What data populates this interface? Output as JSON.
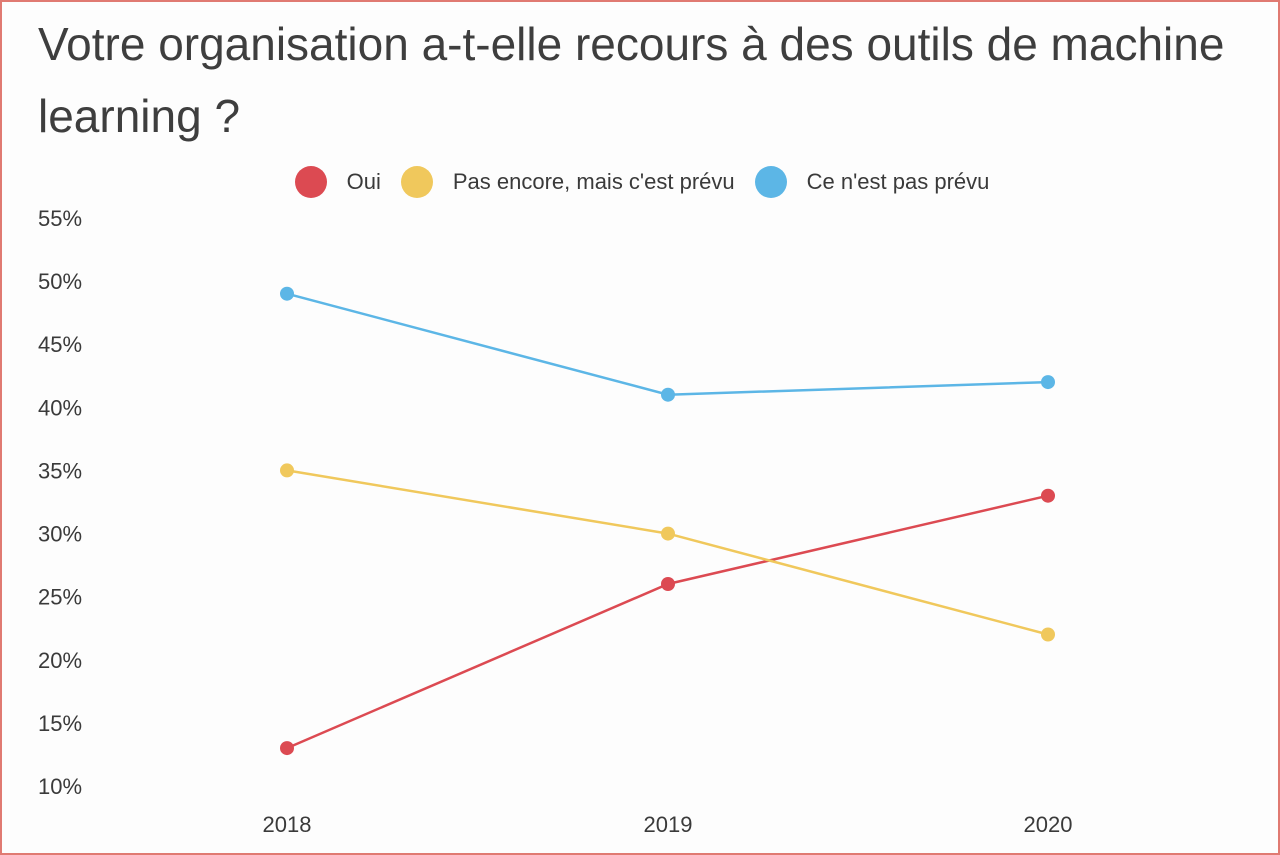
{
  "colors": {
    "oui": "#dc4a52",
    "prevu": "#f0c85c",
    "pas_prevu": "#5cb6e6"
  },
  "chart_data": {
    "type": "line",
    "title": "Votre organisation a-t-elle recours à des outils de machine learning ?",
    "xlabel": "",
    "ylabel": "",
    "categories": [
      "2018",
      "2019",
      "2020"
    ],
    "ylim": [
      10,
      55
    ],
    "yticks": [
      "10%",
      "15%",
      "20%",
      "25%",
      "30%",
      "35%",
      "40%",
      "45%",
      "50%",
      "55%"
    ],
    "legend_position": "top-center",
    "grid": false,
    "series": [
      {
        "name": "Oui",
        "color": "#dc4a52",
        "values": [
          13,
          26,
          33
        ]
      },
      {
        "name": "Pas encore, mais c'est prévu",
        "color": "#f0c85c",
        "values": [
          35,
          30,
          22
        ]
      },
      {
        "name": "Ce n'est pas prévu",
        "color": "#5cb6e6",
        "values": [
          49,
          41,
          42
        ]
      }
    ]
  }
}
